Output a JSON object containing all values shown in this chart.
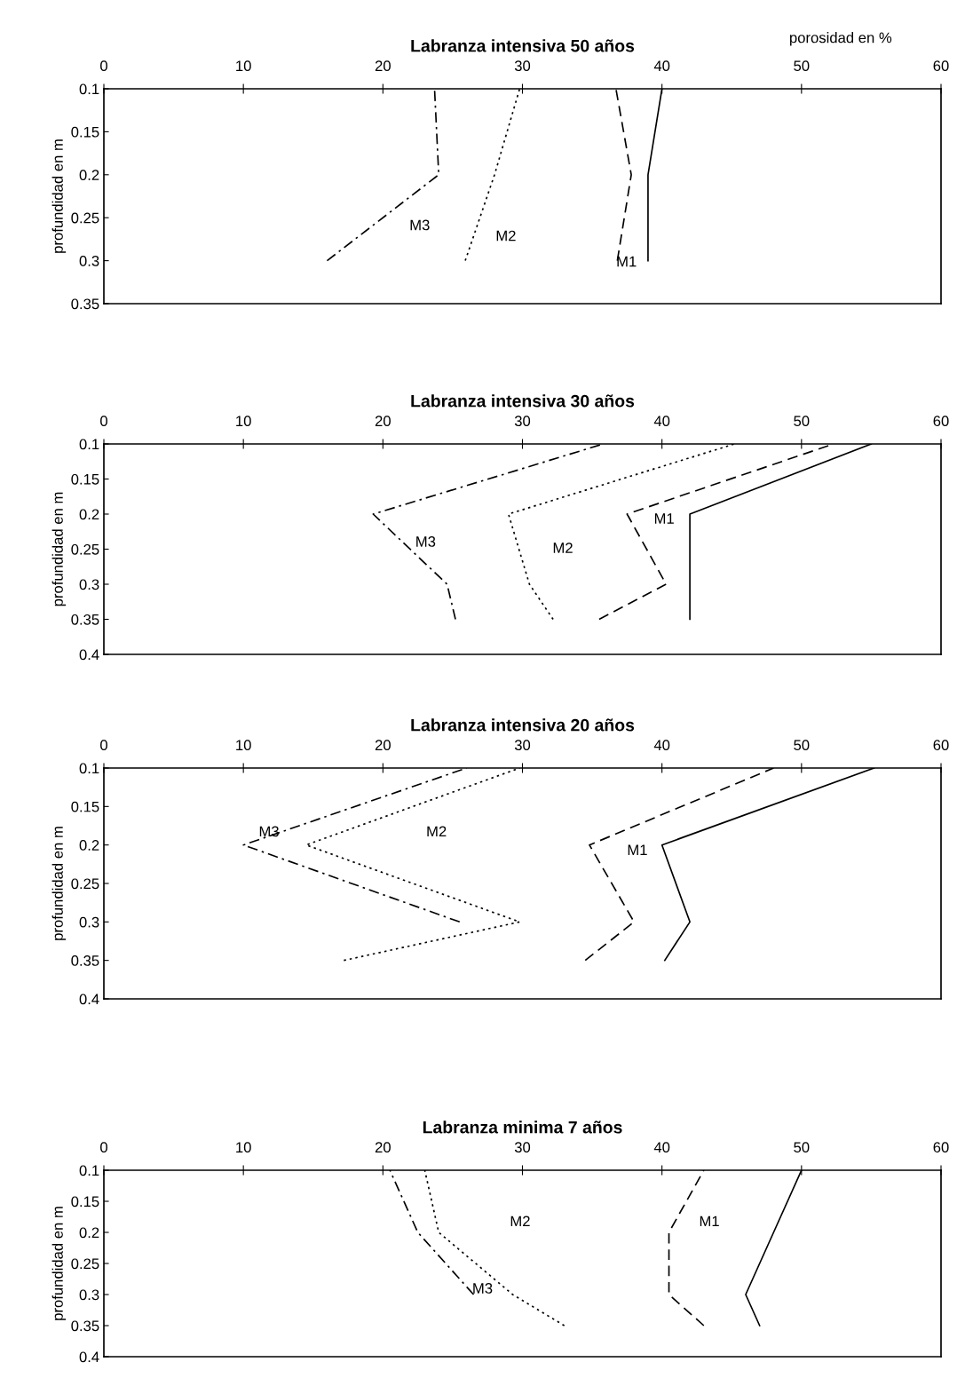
{
  "chart_data": [
    {
      "type": "line",
      "title": "Labranza intensiva 50 años",
      "xlabel": "porosidad en %",
      "ylabel": "profundidad en m",
      "xlim": [
        0,
        60
      ],
      "xticks": [
        0,
        10,
        20,
        30,
        40,
        50,
        60
      ],
      "ylim": [
        0.35,
        0.1
      ],
      "yticks": [
        0.1,
        0.15,
        0.2,
        0.25,
        0.3,
        0.35
      ],
      "grid": false,
      "legend": false,
      "series": [
        {
          "color": "#000000",
          "line_style": "solid",
          "x": [
            40,
            39,
            39
          ],
          "values": [
            0.1,
            0.2,
            0.3
          ]
        },
        {
          "color": "#000000",
          "line_style": "dashed",
          "x": [
            36.7,
            37.8,
            36.8
          ],
          "values": [
            0.1,
            0.2,
            0.3
          ]
        },
        {
          "color": "#000000",
          "line_style": "dotted",
          "x": [
            29.8,
            28.0,
            25.9
          ],
          "values": [
            0.1,
            0.2,
            0.3
          ]
        },
        {
          "color": "#000000",
          "line_style": "dashdot",
          "x": [
            23.7,
            24,
            16
          ],
          "values": [
            0.1,
            0.2,
            0.3
          ]
        }
      ],
      "annotations": [
        "M3",
        "M2",
        "M1"
      ]
    },
    {
      "type": "line",
      "title": "Labranza intensiva 30 años",
      "ylabel": "profundidad en m",
      "xlim": [
        0,
        60
      ],
      "xticks": [
        0,
        10,
        20,
        30,
        40,
        50,
        60
      ],
      "ylim": [
        0.4,
        0.1
      ],
      "yticks": [
        0.1,
        0.15,
        0.2,
        0.25,
        0.3,
        0.35,
        0.4
      ],
      "grid": false,
      "legend": false,
      "series": [
        {
          "color": "#000000",
          "line_style": "solid",
          "x": [
            55,
            42,
            42,
            42
          ],
          "values": [
            0.1,
            0.2,
            0.3,
            0.35
          ]
        },
        {
          "color": "#000000",
          "line_style": "dashed",
          "x": [
            52.3,
            37.5,
            40.3,
            35.5
          ],
          "values": [
            0.1,
            0.2,
            0.3,
            0.35
          ]
        },
        {
          "color": "#000000",
          "line_style": "dotted",
          "x": [
            45.2,
            29,
            30.5,
            32.2
          ],
          "values": [
            0.1,
            0.2,
            0.3,
            0.35
          ]
        },
        {
          "color": "#000000",
          "line_style": "dashdot",
          "x": [
            35.8,
            19.3,
            24.6,
            25.2
          ],
          "values": [
            0.1,
            0.2,
            0.3,
            0.35
          ]
        }
      ],
      "annotations": [
        "M1",
        "M3",
        "M2"
      ]
    },
    {
      "type": "line",
      "title": "Labranza intensiva 20 años",
      "ylabel": "profundidad en m",
      "xlim": [
        0,
        60
      ],
      "xticks": [
        0,
        10,
        20,
        30,
        40,
        50,
        60
      ],
      "ylim": [
        0.4,
        0.1
      ],
      "yticks": [
        0.1,
        0.15,
        0.2,
        0.25,
        0.3,
        0.35,
        0.4
      ],
      "grid": false,
      "legend": false,
      "series": [
        {
          "color": "#000000",
          "line_style": "solid",
          "x": [
            55.2,
            40,
            42,
            40.2
          ],
          "values": [
            0.1,
            0.2,
            0.3,
            0.35
          ]
        },
        {
          "color": "#000000",
          "line_style": "dashed",
          "x": [
            48,
            34.8,
            38,
            34.5
          ],
          "values": [
            0.1,
            0.2,
            0.3,
            0.35
          ]
        },
        {
          "color": "#000000",
          "line_style": "dotted",
          "x": [
            29.8,
            14.5,
            29.8,
            17.2
          ],
          "values": [
            0.1,
            0.2,
            0.3,
            0.35
          ]
        },
        {
          "color": "#000000",
          "line_style": "dashdot",
          "x": [
            26,
            10,
            25.5
          ],
          "values": [
            0.1,
            0.2,
            0.3
          ]
        }
      ],
      "annotations": [
        "M3",
        "M2",
        "M1"
      ]
    },
    {
      "type": "line",
      "title": "Labranza minima 7 años",
      "ylabel": "profundidad en m",
      "xlim": [
        0,
        60
      ],
      "xticks": [
        0,
        10,
        20,
        30,
        40,
        50,
        60
      ],
      "ylim": [
        0.4,
        0.1
      ],
      "yticks": [
        0.1,
        0.15,
        0.2,
        0.25,
        0.3,
        0.35,
        0.4
      ],
      "grid": false,
      "legend": false,
      "series": [
        {
          "color": "#000000",
          "line_style": "solid",
          "x": [
            50,
            48,
            46,
            47
          ],
          "values": [
            0.1,
            0.2,
            0.3,
            0.35
          ]
        },
        {
          "color": "#000000",
          "line_style": "dashed",
          "x": [
            43,
            40.5,
            40.5,
            43
          ],
          "values": [
            0.1,
            0.2,
            0.3,
            0.35
          ]
        },
        {
          "color": "#000000",
          "line_style": "dotted",
          "x": [
            23,
            24,
            29.3,
            33
          ],
          "values": [
            0.1,
            0.2,
            0.3,
            0.35
          ]
        },
        {
          "color": "#000000",
          "line_style": "dashdot",
          "x": [
            20.5,
            22.5,
            26.5
          ],
          "values": [
            0.1,
            0.2,
            0.3
          ]
        }
      ],
      "annotations": [
        "M2",
        "M1",
        "M3"
      ]
    }
  ]
}
